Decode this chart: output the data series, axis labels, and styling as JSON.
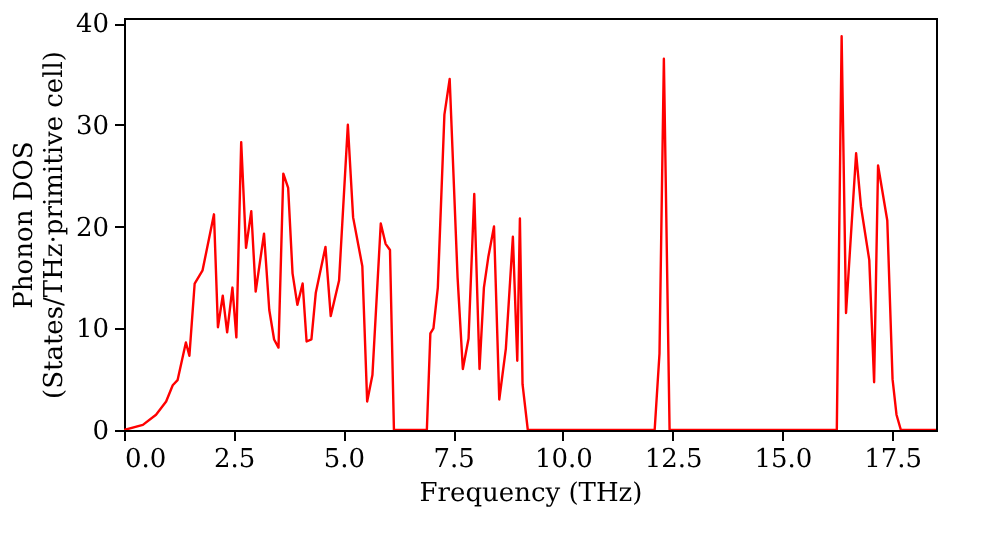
{
  "chart_data": {
    "type": "line",
    "xlabel": "Frequency (THz)",
    "ylabel": "Phonon DOS\n(States/THz·primitive cell)",
    "xlim": [
      0,
      18.5
    ],
    "ylim": [
      0,
      40.5
    ],
    "xticks": [
      {
        "value": 0,
        "label": "0.0"
      },
      {
        "value": 2.5,
        "label": "2.5"
      },
      {
        "value": 5,
        "label": "5.0"
      },
      {
        "value": 7.5,
        "label": "7.5"
      },
      {
        "value": 10,
        "label": "10.0"
      },
      {
        "value": 12.5,
        "label": "12.5"
      },
      {
        "value": 15,
        "label": "15.0"
      },
      {
        "value": 17.5,
        "label": "17.5"
      }
    ],
    "yticks": [
      0,
      10,
      20,
      30,
      40
    ],
    "grid": false,
    "line_style": "solid",
    "marker": "none",
    "series": [
      {
        "color": "#ff0000",
        "x": [
          0,
          0.43,
          0.73,
          0.96,
          1.11,
          1.22,
          1.41,
          1.49,
          1.61,
          1.79,
          2.05,
          2.14,
          2.25,
          2.35,
          2.47,
          2.56,
          2.67,
          2.78,
          2.9,
          3.0,
          3.19,
          3.31,
          3.42,
          3.52,
          3.63,
          3.74,
          3.84,
          3.95,
          4.07,
          4.16,
          4.27,
          4.37,
          4.59,
          4.71,
          4.9,
          5.1,
          5.22,
          5.43,
          5.54,
          5.66,
          5.85,
          5.96,
          6.06,
          6.15,
          6.9,
          6.98,
          7.05,
          7.15,
          7.3,
          7.42,
          7.6,
          7.72,
          7.85,
          7.98,
          8.1,
          8.2,
          8.3,
          8.43,
          8.55,
          8.7,
          8.86,
          8.96,
          9.02,
          9.08,
          9.2,
          12.09,
          12.2,
          12.3,
          12.43,
          16.24,
          16.35,
          16.45,
          16.68,
          16.79,
          16.98,
          17.09,
          17.18,
          17.39,
          17.51,
          17.6,
          17.7,
          18.5
        ],
        "values": [
          0,
          0.5,
          1.5,
          2.8,
          4.4,
          4.9,
          8.6,
          7.3,
          14.4,
          15.7,
          21.2,
          10.1,
          13.2,
          9.6,
          14,
          9.1,
          28.3,
          17.9,
          21.5,
          13.6,
          19.3,
          11.8,
          8.9,
          8.1,
          25.2,
          23.8,
          15.4,
          12.3,
          14.4,
          8.7,
          8.9,
          13.5,
          18,
          11.2,
          14.7,
          30,
          20.9,
          16.1,
          2.8,
          5.4,
          20.3,
          18.3,
          17.7,
          0,
          0,
          9.5,
          10,
          14,
          31,
          34.5,
          15,
          6,
          9,
          23.2,
          6,
          14,
          17,
          20,
          3,
          8,
          19,
          6.8,
          20.8,
          4.5,
          0,
          0,
          7.5,
          36.5,
          0,
          0,
          38.7,
          11.5,
          27.2,
          22,
          16.7,
          4.7,
          26,
          20.6,
          5,
          1.5,
          0,
          0
        ]
      }
    ]
  }
}
